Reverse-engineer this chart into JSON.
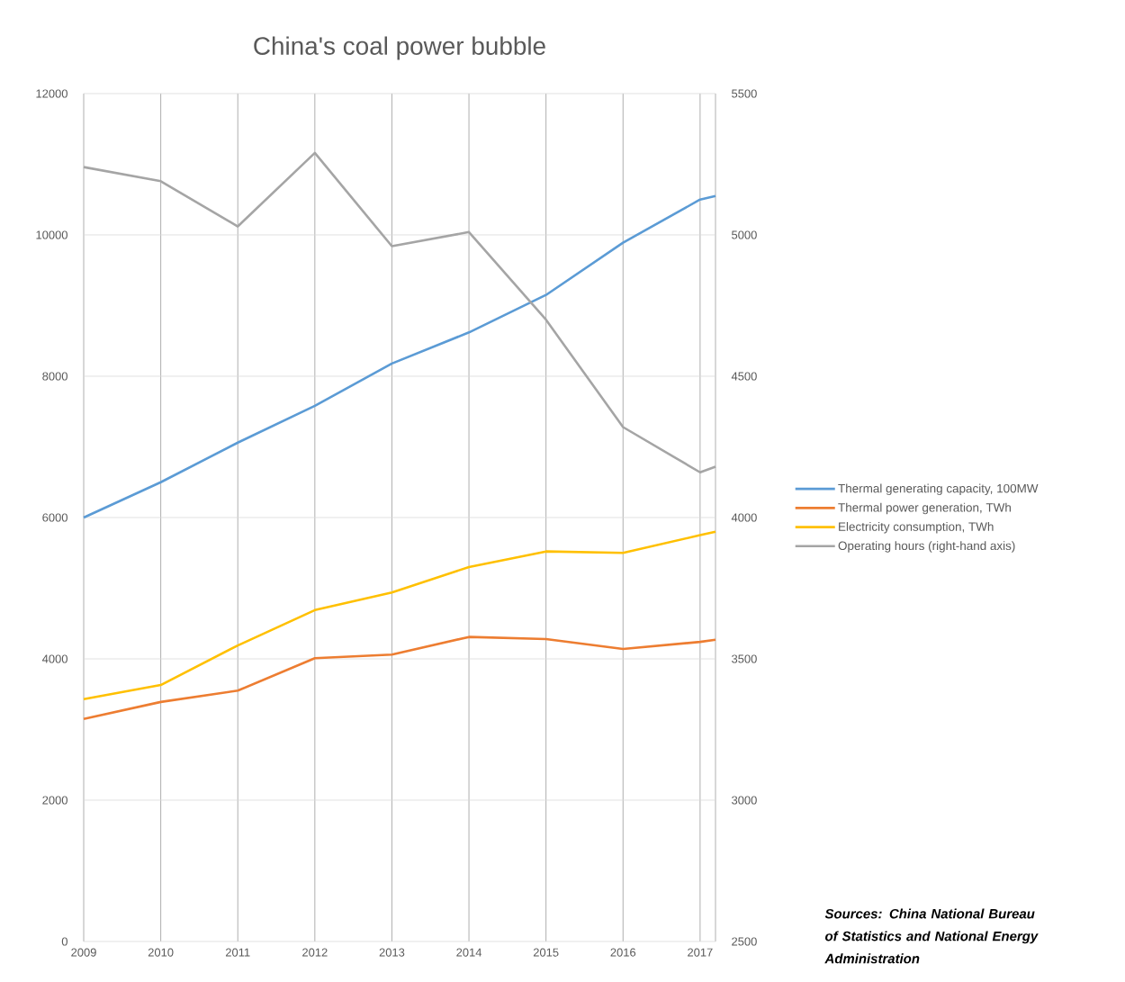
{
  "chart_data": {
    "type": "line",
    "title": "China's coal power bubble",
    "x": [
      2009,
      2010,
      2011,
      2012,
      2013,
      2014,
      2015,
      2016,
      2017,
      2017.2
    ],
    "series": [
      {
        "name": "Thermal generating capacity, 100MW",
        "color": "#5b9bd5",
        "values": [
          6000,
          6500,
          7060,
          7580,
          8180,
          8620,
          9150,
          9890,
          10500,
          10550
        ]
      },
      {
        "name": "Thermal power generation, TWh",
        "color": "#ed7d31",
        "values": [
          3150,
          3390,
          3550,
          4010,
          4060,
          4310,
          4280,
          4140,
          4240,
          4270
        ]
      },
      {
        "name": "Electricity consumption, TWh",
        "color": "#ffc000",
        "values": [
          3430,
          3630,
          4190,
          4690,
          4940,
          5300,
          5520,
          5500,
          5750,
          5800
        ]
      },
      {
        "name": "Operating hours (right-hand axis)",
        "color": "#a5a5a5",
        "axis": "y2",
        "values": [
          5240,
          5190,
          5030,
          5290,
          4960,
          5010,
          4700,
          4320,
          4160,
          4180
        ]
      }
    ],
    "xlim": [
      2009,
      2017.2
    ],
    "xticks": [
      2009,
      2010,
      2011,
      2012,
      2013,
      2014,
      2015,
      2016,
      2017,
      {
        "value": 2017.2,
        "label": null
      }
    ],
    "ylim": [
      0,
      12000
    ],
    "yticks": [
      0,
      2000,
      4000,
      6000,
      8000,
      10000,
      12000
    ],
    "y2lim": [
      2500,
      5500
    ],
    "y2ticks": [
      2500,
      3000,
      3500,
      4000,
      4500,
      5000,
      5500
    ],
    "grid": true,
    "legend": "right",
    "annotations": [
      "Sources: China National Bureau of Statistics and National Energy Administration"
    ]
  }
}
